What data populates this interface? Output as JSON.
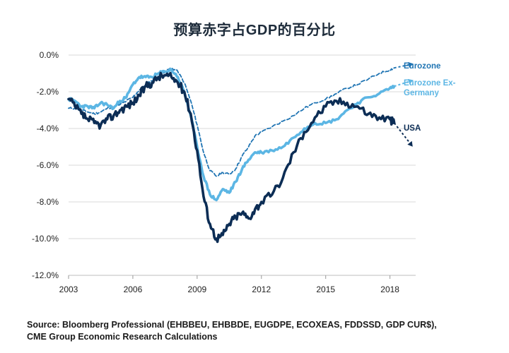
{
  "title": "预算赤字占GDP的百分比",
  "source": {
    "line1": "Source: Bloomberg Professional (EHBBEU, EHBBDE, EUGDPE, ECOXEAS, FDDSSD, GDP CUR$),",
    "line2": "CME Group Economic Research Calculations"
  },
  "chart_data": {
    "type": "line",
    "title": "预算赤字占GDP的百分比",
    "xlabel": "",
    "ylabel": "",
    "xlim": [
      2003,
      2019.2
    ],
    "ylim": [
      -12,
      0
    ],
    "x_ticks": [
      2003,
      2006,
      2009,
      2012,
      2015,
      2018
    ],
    "x_tick_labels": [
      "2003",
      "2006",
      "2009",
      "2012",
      "2015",
      "2018"
    ],
    "y_ticks": [
      0,
      -2,
      -4,
      -6,
      -8,
      -10,
      -12
    ],
    "y_tick_labels": [
      "0.0%",
      "-2.0%",
      "-4.0%",
      "-6.0%",
      "-8.0%",
      "-10.0%",
      "-12.0%"
    ],
    "grid": "horizontal",
    "legend": "labels at right end of each line",
    "series": [
      {
        "name": "Eurozone",
        "label_lines": [
          "Eurozone"
        ],
        "color": "#1f74b3",
        "style": "dashed",
        "x": [
          2003.0,
          2003.3,
          2003.6,
          2003.9,
          2004.2,
          2004.5,
          2004.8,
          2005.1,
          2005.4,
          2005.7,
          2006.0,
          2006.3,
          2006.6,
          2006.9,
          2007.2,
          2007.5,
          2007.8,
          2008.1,
          2008.4,
          2008.7,
          2009.0,
          2009.3,
          2009.6,
          2009.9,
          2010.2,
          2010.5,
          2010.8,
          2011.1,
          2011.4,
          2011.7,
          2012.0,
          2012.5,
          2013.0,
          2013.5,
          2014.0,
          2014.5,
          2015.0,
          2015.5,
          2016.0,
          2016.5,
          2017.0,
          2017.5,
          2018.0,
          2018.2
        ],
        "y": [
          -2.9,
          -2.9,
          -3.0,
          -3.1,
          -3.2,
          -3.1,
          -2.9,
          -2.8,
          -2.7,
          -2.5,
          -2.3,
          -1.9,
          -1.6,
          -1.4,
          -1.1,
          -0.9,
          -0.7,
          -0.9,
          -1.5,
          -2.5,
          -3.8,
          -5.3,
          -6.3,
          -6.6,
          -6.4,
          -6.5,
          -6.2,
          -5.5,
          -5.0,
          -4.4,
          -4.2,
          -3.9,
          -3.6,
          -3.3,
          -2.9,
          -2.6,
          -2.4,
          -2.1,
          -1.8,
          -1.6,
          -1.3,
          -1.0,
          -0.8,
          -0.7
        ]
      },
      {
        "name": "Eurozone Ex-Germany",
        "label_lines": [
          "Eurozone Ex-",
          "Germany"
        ],
        "color": "#5cb6e4",
        "style": "dotted",
        "x": [
          2003.0,
          2003.3,
          2003.6,
          2003.9,
          2004.2,
          2004.5,
          2004.8,
          2005.1,
          2005.4,
          2005.7,
          2006.0,
          2006.3,
          2006.6,
          2006.9,
          2007.2,
          2007.5,
          2007.8,
          2008.1,
          2008.4,
          2008.7,
          2009.0,
          2009.3,
          2009.6,
          2009.9,
          2010.2,
          2010.5,
          2010.8,
          2011.1,
          2011.4,
          2011.7,
          2012.0,
          2012.5,
          2013.0,
          2013.5,
          2014.0,
          2014.5,
          2015.0,
          2015.5,
          2016.0,
          2016.5,
          2017.0,
          2017.5,
          2018.0,
          2018.2
        ],
        "y": [
          -2.4,
          -2.5,
          -2.8,
          -2.8,
          -2.9,
          -2.6,
          -2.7,
          -2.9,
          -2.5,
          -2.3,
          -1.6,
          -1.2,
          -1.2,
          -1.2,
          -1.0,
          -0.9,
          -0.8,
          -1.2,
          -2.0,
          -3.3,
          -5.0,
          -6.6,
          -7.6,
          -7.9,
          -7.3,
          -7.5,
          -6.9,
          -6.2,
          -5.7,
          -5.3,
          -5.3,
          -5.2,
          -5.0,
          -4.5,
          -4.0,
          -3.7,
          -3.7,
          -3.5,
          -3.0,
          -2.6,
          -2.3,
          -2.1,
          -1.8,
          -1.7
        ]
      },
      {
        "name": "USA",
        "label_lines": [
          "USA"
        ],
        "color": "#0c2d55",
        "style": "solid",
        "x": [
          2003.0,
          2003.3,
          2003.6,
          2003.9,
          2004.2,
          2004.5,
          2004.8,
          2005.1,
          2005.4,
          2005.7,
          2006.0,
          2006.3,
          2006.6,
          2006.9,
          2007.2,
          2007.5,
          2007.8,
          2008.1,
          2008.4,
          2008.7,
          2009.0,
          2009.3,
          2009.6,
          2009.9,
          2010.2,
          2010.5,
          2010.8,
          2011.1,
          2011.4,
          2011.7,
          2012.0,
          2012.5,
          2013.0,
          2013.5,
          2014.0,
          2014.5,
          2015.0,
          2015.5,
          2016.0,
          2016.5,
          2017.0,
          2017.5,
          2018.0,
          2018.2
        ],
        "y": [
          -2.4,
          -2.8,
          -3.2,
          -3.5,
          -3.7,
          -3.8,
          -3.5,
          -3.3,
          -3.0,
          -2.8,
          -2.6,
          -2.2,
          -1.7,
          -1.5,
          -1.2,
          -1.1,
          -1.2,
          -1.5,
          -2.0,
          -3.2,
          -5.2,
          -7.7,
          -9.2,
          -10.0,
          -9.8,
          -9.2,
          -8.8,
          -8.6,
          -8.9,
          -8.4,
          -8.0,
          -7.6,
          -6.7,
          -5.3,
          -4.2,
          -3.4,
          -2.8,
          -2.5,
          -2.6,
          -2.8,
          -3.2,
          -3.4,
          -3.5,
          -3.7
        ]
      }
    ],
    "projections": [
      {
        "series": "Eurozone",
        "x": [
          2018.2,
          2019.0
        ],
        "y": [
          -0.7,
          -0.5
        ]
      },
      {
        "series": "Eurozone Ex-Germany",
        "x": [
          2018.2,
          2019.0
        ],
        "y": [
          -1.7,
          -1.4
        ]
      },
      {
        "series": "USA",
        "x": [
          2018.2,
          2019.0
        ],
        "y": [
          -3.7,
          -4.9
        ]
      }
    ]
  }
}
